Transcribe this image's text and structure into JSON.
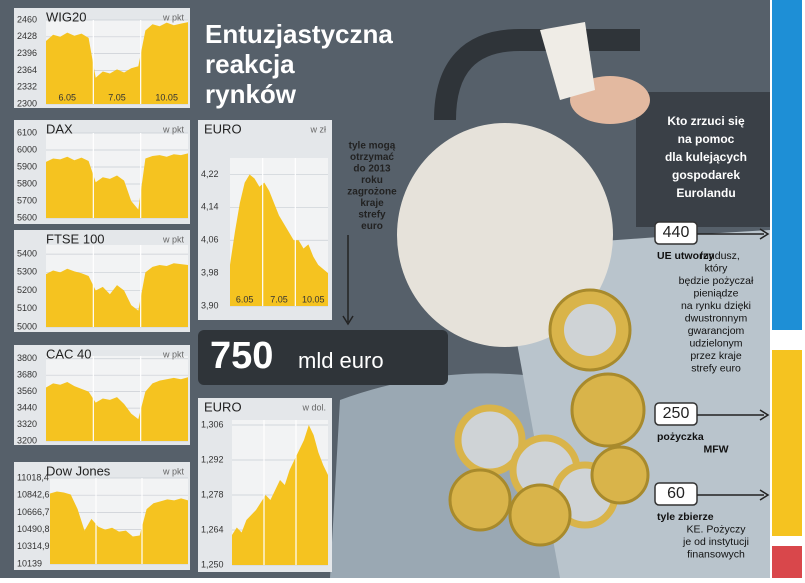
{
  "chart_data": [
    {
      "type": "area",
      "title": "WIG20",
      "unit": "w pkt",
      "color": "#f5c320",
      "categories": [
        null,
        null,
        null,
        "6.05",
        null,
        null,
        null,
        null,
        null,
        null,
        "7.05",
        null,
        null,
        null,
        null,
        null,
        null,
        "10.05",
        null,
        null,
        null
      ],
      "values": [
        2420,
        2432,
        2428,
        2436,
        2430,
        2434,
        2426,
        2350,
        2362,
        2358,
        2366,
        2360,
        2368,
        2372,
        2440,
        2452,
        2448,
        2455,
        2450,
        2453,
        2456
      ],
      "ylim": [
        2300,
        2460
      ],
      "yticks": [
        2300,
        2332,
        2364,
        2396,
        2428,
        2460
      ],
      "grid": true
    },
    {
      "type": "area",
      "title": "DAX",
      "unit": "w pkt",
      "color": "#f5c320",
      "values": [
        5930,
        5950,
        5945,
        5960,
        5940,
        5955,
        5935,
        5810,
        5840,
        5830,
        5850,
        5820,
        5700,
        5650,
        5950,
        5965,
        5970,
        5960,
        5975,
        5970,
        5980
      ],
      "ylim": [
        5600,
        6100
      ],
      "yticks": [
        5600,
        5700,
        5800,
        5900,
        6000,
        6100
      ],
      "grid": true
    },
    {
      "type": "area",
      "title": "FTSE 100",
      "unit": "w pkt",
      "color": "#f5c320",
      "values": [
        5290,
        5310,
        5300,
        5320,
        5305,
        5295,
        5280,
        5200,
        5220,
        5180,
        5230,
        5200,
        5120,
        5090,
        5300,
        5330,
        5340,
        5335,
        5350,
        5345,
        5340
      ],
      "ylim": [
        5000,
        5450
      ],
      "yticks": [
        5000,
        5100,
        5200,
        5300,
        5400
      ],
      "grid": true
    },
    {
      "type": "area",
      "title": "CAC 40",
      "unit": "w pkt",
      "color": "#f5c320",
      "values": [
        3590,
        3620,
        3610,
        3630,
        3600,
        3580,
        3560,
        3480,
        3510,
        3500,
        3520,
        3470,
        3400,
        3360,
        3560,
        3620,
        3640,
        3650,
        3660,
        3650,
        3665
      ],
      "ylim": [
        3200,
        3820
      ],
      "yticks": [
        3200,
        3320,
        3440,
        3560,
        3680,
        3800
      ],
      "grid": true
    },
    {
      "type": "area",
      "title": "Dow Jones",
      "unit": "w pkt",
      "color": "#f5c320",
      "values": [
        10860,
        10880,
        10870,
        10850,
        10700,
        10480,
        10600,
        10520,
        10490,
        10510,
        10470,
        10480,
        10420,
        10430,
        10700,
        10760,
        10780,
        10800,
        10790,
        10810,
        10790
      ],
      "ylim": [
        10139,
        11018.4
      ],
      "yticks": [
        10139,
        {
          "value": 10314.9,
          "label": "10314,9"
        },
        {
          "value": 10490.8,
          "label": "10490,8"
        },
        {
          "value": 10666.7,
          "label": "10666,7"
        },
        {
          "value": 10842.6,
          "label": "10842,6"
        },
        {
          "value": 11018.4,
          "label": "11018,4"
        }
      ],
      "grid": true
    },
    {
      "type": "area",
      "title": "EURO",
      "unit": "w zł",
      "color": "#f5c320",
      "categories": [
        null,
        null,
        null,
        "6.05",
        null,
        null,
        null,
        null,
        null,
        null,
        "7.05",
        null,
        null,
        null,
        null,
        null,
        null,
        "10.05",
        null,
        null,
        null
      ],
      "values": [
        4.0,
        4.08,
        4.15,
        4.2,
        4.22,
        4.21,
        4.19,
        4.2,
        4.18,
        4.15,
        4.12,
        4.1,
        4.08,
        4.06,
        4.06,
        4.04,
        4.05,
        4.02,
        4.0,
        3.99,
        3.98
      ],
      "ylim": [
        3.9,
        4.26
      ],
      "yticks": [
        {
          "value": 3.9,
          "label": "3,90"
        },
        {
          "value": 3.98,
          "label": "3,98"
        },
        {
          "value": 4.06,
          "label": "4,06"
        },
        {
          "value": 4.14,
          "label": "4,14"
        },
        {
          "value": 4.22,
          "label": "4,22"
        }
      ],
      "grid": true
    },
    {
      "type": "area",
      "title": "EURO",
      "unit": "w dol.",
      "color": "#f5c320",
      "values": [
        1.262,
        1.265,
        1.263,
        1.268,
        1.27,
        1.272,
        1.275,
        1.278,
        1.276,
        1.28,
        1.284,
        1.282,
        1.288,
        1.292,
        1.296,
        1.3,
        1.306,
        1.302,
        1.295,
        1.29,
        1.286
      ],
      "ylim": [
        1.25,
        1.308
      ],
      "yticks": [
        {
          "value": 1.25,
          "label": "1,250"
        },
        {
          "value": 1.264,
          "label": "1,264"
        },
        {
          "value": 1.278,
          "label": "1,278"
        },
        {
          "value": 1.292,
          "label": "1,292"
        },
        {
          "value": 1.306,
          "label": "1,306"
        }
      ],
      "grid": true
    }
  ],
  "headline": [
    "Entuzjastyczna",
    "reakcja",
    "rynków"
  ],
  "note": [
    "tyle mogą",
    "otrzymać",
    "do 2013",
    "roku",
    "zagrożone",
    "kraje",
    "strefy",
    "euro"
  ],
  "total": {
    "value": 750,
    "unit": "mld euro"
  },
  "question": [
    "Kto zrzuci się",
    "na pomoc",
    "dla kulejących",
    "gospodarek",
    "Eurolandu"
  ],
  "items": [
    {
      "amount": 440,
      "lead": "UE utworzy",
      "lines": [
        "fundusz,",
        "który",
        "będzie pożyczał",
        "pieniądze",
        "na rynku dzięki",
        "dwustronnym",
        "gwarancjom",
        "udzielonym",
        "przez kraje",
        "strefy euro"
      ]
    },
    {
      "amount": 250,
      "lead": "pożyczka",
      "lines": [
        "MFW"
      ]
    },
    {
      "amount": 60,
      "lead": "tyle zbierze",
      "lines": [
        "KE. Pożyczy",
        "je od instytucji",
        "finansowych"
      ]
    }
  ]
}
